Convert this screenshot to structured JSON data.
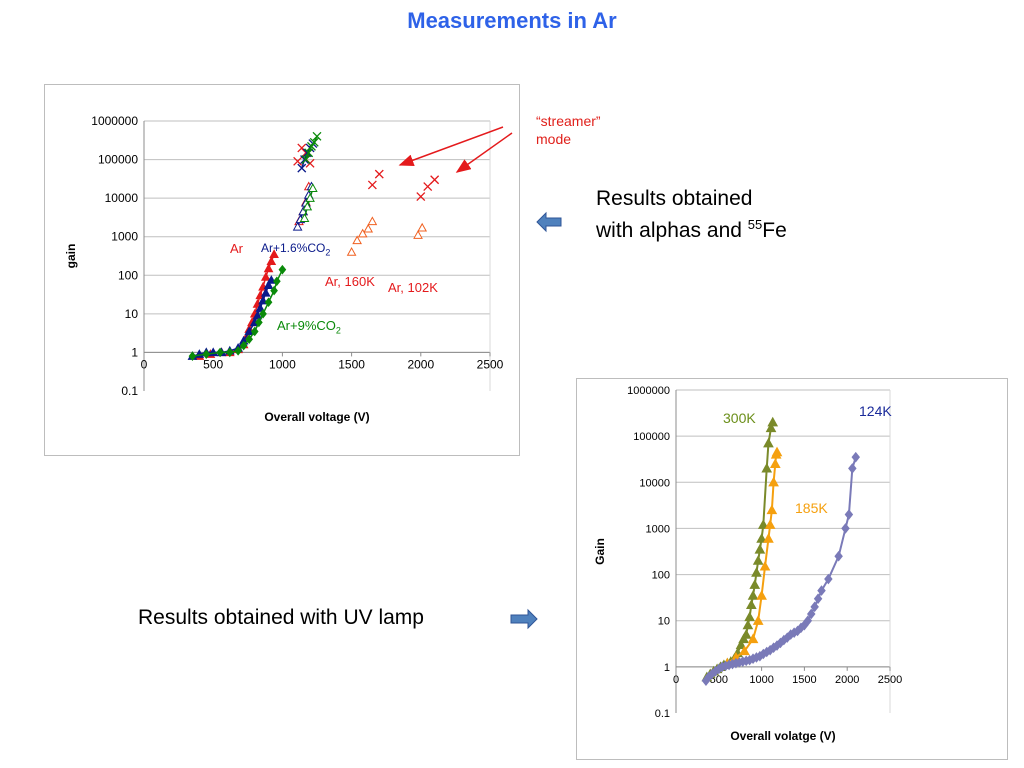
{
  "slide_title": "Measurements in Ar",
  "streamer_label": [
    "“streamer”",
    "mode"
  ],
  "caption_top": {
    "main": "Results obtained",
    "line2": "with alphas and ",
    "sup": "55",
    "tail": "Fe"
  },
  "caption_bottom": "Results obtained with UV lamp",
  "chart_data": [
    {
      "type": "scatter",
      "title": "",
      "xlabel": "Overall voltage (V)",
      "ylabel": "gain",
      "xlim": [
        0,
        2500
      ],
      "ylim": [
        0.1,
        1000000
      ],
      "yscale": "log",
      "x_ticks": [
        "0",
        "500",
        "1000",
        "1500",
        "2000",
        "2500"
      ],
      "y_ticks": [
        "0.1",
        "1",
        "10",
        "100",
        "1000",
        "10000",
        "100000",
        "1000000"
      ],
      "grid": "horizontal",
      "colors": {
        "red": "#e41a1c",
        "blue": "#0a1a8a",
        "green": "#0a8a0a",
        "orange": "#f06020",
        "darkgreen": "#0a8a0a"
      },
      "annotations": [
        {
          "text": "Ar",
          "color": "#e41a1c"
        },
        {
          "text": "Ar+1.6%CO",
          "sub": "2",
          "color": "#0a1a8a"
        },
        {
          "text": "Ar, 160K",
          "color": "#e41a1c"
        },
        {
          "text": "Ar, 102K",
          "color": "#e41a1c"
        },
        {
          "text": "Ar+9%CO",
          "sub": "2",
          "color": "#0a8a0a"
        }
      ],
      "series": [
        {
          "marker": "triangle",
          "color": "#e41a1c",
          "line": true,
          "x": [
            400,
            480,
            560,
            620,
            680,
            720,
            740,
            760,
            780,
            800,
            820,
            840,
            860,
            880,
            900,
            920,
            940
          ],
          "y": [
            0.8,
            0.9,
            1,
            1,
            1.2,
            1.6,
            2.5,
            4,
            6,
            10,
            18,
            30,
            50,
            90,
            150,
            230,
            350
          ]
        },
        {
          "marker": "triangle",
          "color": "#0a1a8a",
          "line": true,
          "x": [
            350,
            400,
            450,
            500,
            560,
            620,
            680,
            720,
            760,
            800,
            820,
            840,
            860,
            880,
            900,
            920
          ],
          "y": [
            0.8,
            0.9,
            1,
            1,
            1,
            1.1,
            1.3,
            2,
            3.5,
            6,
            9,
            14,
            22,
            35,
            55,
            75
          ]
        },
        {
          "marker": "diamond",
          "color": "#0a8a0a",
          "line": true,
          "x": [
            350,
            450,
            550,
            620,
            680,
            720,
            760,
            800,
            830,
            860,
            900,
            940,
            960,
            1000
          ],
          "y": [
            0.8,
            0.9,
            1,
            1,
            1.1,
            1.5,
            2.2,
            3.5,
            6,
            10,
            20,
            40,
            70,
            140
          ]
        },
        {
          "marker": "triangle-open",
          "color": "#f06020",
          "line": false,
          "x": [
            1500,
            1540,
            1580,
            1620,
            1650
          ],
          "y": [
            400,
            800,
            1200,
            1600,
            2500
          ]
        },
        {
          "marker": "triangle-open",
          "color": "#f06020",
          "line": false,
          "x": [
            1980,
            2010
          ],
          "y": [
            1100,
            1700
          ]
        },
        {
          "marker": "triangle-open",
          "color": "#e41a1c",
          "line": false,
          "x": [
            1120,
            1150,
            1170,
            1190
          ],
          "y": [
            2500,
            4500,
            8000,
            20000
          ]
        },
        {
          "marker": "triangle-open",
          "color": "#0a1a8a",
          "line": true,
          "x": [
            1110,
            1130,
            1150,
            1170,
            1190,
            1210
          ],
          "y": [
            1800,
            2800,
            4500,
            7500,
            12000,
            20000
          ]
        },
        {
          "marker": "triangle-open",
          "color": "#0a8a0a",
          "line": true,
          "x": [
            1160,
            1180,
            1200,
            1220
          ],
          "y": [
            3000,
            6000,
            10000,
            18000
          ]
        },
        {
          "marker": "x",
          "color": "#e41a1c",
          "line": false,
          "x": [
            1110,
            1140,
            1170,
            1200
          ],
          "y": [
            90000,
            200000,
            150000,
            80000
          ]
        },
        {
          "marker": "x",
          "color": "#0a1a8a",
          "line": true,
          "x": [
            1140,
            1160,
            1180,
            1200,
            1220
          ],
          "y": [
            60000,
            100000,
            150000,
            200000,
            260000
          ]
        },
        {
          "marker": "x",
          "color": "#0a8a0a",
          "line": true,
          "x": [
            1170,
            1190,
            1210,
            1230,
            1250
          ],
          "y": [
            100000,
            150000,
            220000,
            280000,
            400000
          ]
        },
        {
          "marker": "x",
          "color": "#e41a1c",
          "line": false,
          "x": [
            1650,
            1700
          ],
          "y": [
            22000,
            42000
          ]
        },
        {
          "marker": "x",
          "color": "#e41a1c",
          "line": false,
          "x": [
            2000,
            2050,
            2100
          ],
          "y": [
            11000,
            20000,
            30000
          ]
        }
      ]
    },
    {
      "type": "line",
      "title": "",
      "xlabel": "Overall volatge (V)",
      "ylabel": "Gain",
      "xlim": [
        0,
        2500
      ],
      "ylim": [
        0.1,
        1000000
      ],
      "yscale": "log",
      "x_ticks": [
        "0",
        "500",
        "1000",
        "1500",
        "2000",
        "2500"
      ],
      "y_ticks": [
        "0.1",
        "1",
        "10",
        "100",
        "1000",
        "10000",
        "100000",
        "1000000"
      ],
      "grid": "horizontal",
      "annotations": [
        {
          "text": "300K",
          "color": "#6b8f1a"
        },
        {
          "text": "185K",
          "color": "#f5a00f"
        },
        {
          "text": "124K",
          "color": "#1a2a9a"
        }
      ],
      "series": [
        {
          "name": "300K",
          "color": "#7a8a2a",
          "marker": "triangle",
          "x": [
            360,
            400,
            440,
            480,
            520,
            560,
            600,
            640,
            680,
            720,
            760,
            790,
            820,
            840,
            860,
            880,
            900,
            920,
            940,
            960,
            980,
            1000,
            1020,
            1060,
            1080,
            1110,
            1130
          ],
          "y": [
            0.6,
            0.7,
            0.8,
            0.9,
            1,
            1.1,
            1.2,
            1.3,
            1.5,
            2,
            3,
            4,
            5,
            8,
            12,
            22,
            35,
            60,
            110,
            200,
            350,
            600,
            1200,
            20000,
            70000,
            150000,
            200000
          ]
        },
        {
          "name": "185K",
          "color": "#f5a00f",
          "marker": "triangle",
          "x": [
            600,
            700,
            800,
            900,
            960,
            1000,
            1040,
            1080,
            1100,
            1120,
            1140,
            1160,
            1170,
            1180
          ],
          "y": [
            1.2,
            1.6,
            2.2,
            4,
            10,
            35,
            150,
            600,
            1200,
            2500,
            10000,
            25000,
            40000,
            45000
          ]
        },
        {
          "name": "124K",
          "color": "#7a7ab8",
          "marker": "diamond",
          "x": [
            350,
            380,
            420,
            460,
            500,
            540,
            580,
            620,
            660,
            700,
            740,
            780,
            820,
            860,
            900,
            940,
            980,
            1020,
            1060,
            1100,
            1140,
            1180,
            1220,
            1260,
            1300,
            1340,
            1380,
            1420,
            1460,
            1500,
            1540,
            1580,
            1620,
            1660,
            1700,
            1780,
            1900,
            1980,
            2020,
            2060,
            2100
          ],
          "y": [
            0.5,
            0.6,
            0.7,
            0.8,
            0.9,
            1,
            1.05,
            1.1,
            1.15,
            1.2,
            1.25,
            1.3,
            1.35,
            1.4,
            1.5,
            1.6,
            1.7,
            1.9,
            2.1,
            2.3,
            2.6,
            2.9,
            3.3,
            3.8,
            4.3,
            5,
            5.5,
            6,
            7,
            8,
            10,
            14,
            20,
            30,
            45,
            80,
            250,
            1000,
            2000,
            20000,
            35000
          ]
        }
      ]
    }
  ]
}
